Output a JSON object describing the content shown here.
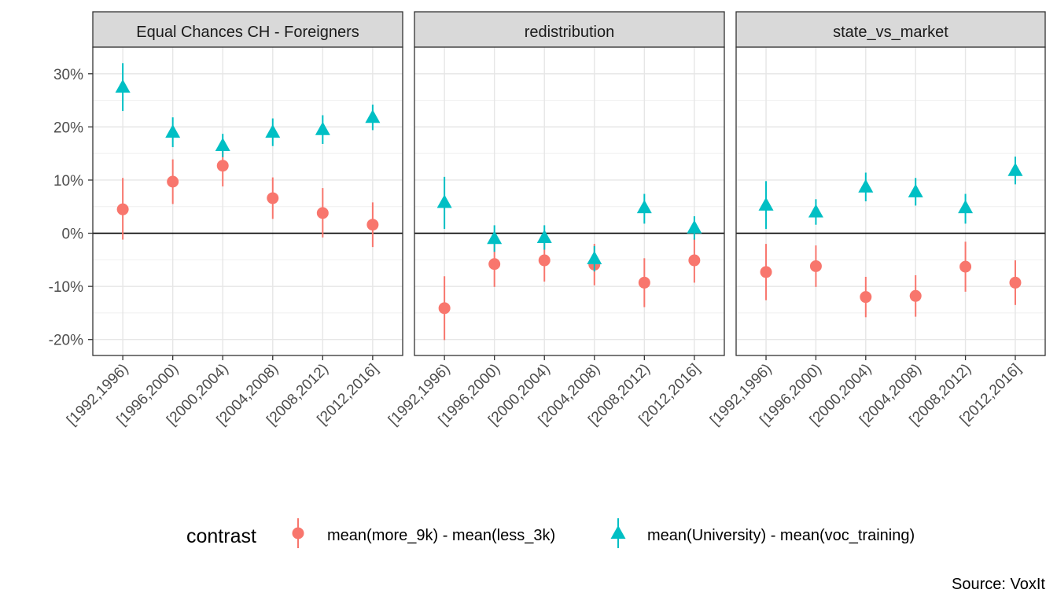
{
  "chart_data": {
    "type": "scatter",
    "subtype": "pointrange",
    "panels": [
      "Equal Chances CH - Foreigners",
      "redistribution",
      "state_vs_market"
    ],
    "categories": [
      "[1992,1996)",
      "[1996,2000)",
      "[2000,2004)",
      "[2004,2008)",
      "[2008,2012)",
      "[2012,2016]"
    ],
    "ylim": [
      -0.23,
      0.35
    ],
    "yticks": [
      -0.2,
      -0.1,
      0,
      0.1,
      0.2,
      0.3
    ],
    "ytick_labels": [
      "-20%",
      "-10%",
      "0%",
      "10%",
      "20%",
      "30%"
    ],
    "reference_line": 0,
    "grid": true,
    "legend": {
      "title": "contrast",
      "position": "bottom"
    },
    "caption": "Source: VoxIt",
    "series": [
      {
        "name": "mean(more_9k) - mean(less_3k)",
        "color": "#F8766D",
        "shape": "circle",
        "panels": [
          {
            "y": [
              0.045,
              0.097,
              0.127,
              0.066,
              0.038,
              0.016
            ],
            "ymin": [
              -0.012,
              0.055,
              0.088,
              0.027,
              -0.008,
              -0.026
            ],
            "ymax": [
              0.104,
              0.139,
              0.166,
              0.105,
              0.085,
              0.058
            ]
          },
          {
            "y": [
              -0.141,
              -0.058,
              -0.051,
              -0.059,
              -0.093,
              -0.051
            ],
            "ymin": [
              -0.201,
              -0.101,
              -0.091,
              -0.098,
              -0.139,
              -0.093
            ],
            "ymax": [
              -0.081,
              -0.015,
              -0.011,
              -0.02,
              -0.047,
              -0.009
            ]
          },
          {
            "y": [
              -0.073,
              -0.062,
              -0.12,
              -0.118,
              -0.063,
              -0.093
            ],
            "ymin": [
              -0.126,
              -0.101,
              -0.158,
              -0.157,
              -0.11,
              -0.135
            ],
            "ymax": [
              -0.02,
              -0.023,
              -0.082,
              -0.079,
              -0.016,
              -0.051
            ]
          }
        ]
      },
      {
        "name": "mean(University) - mean(voc_training)",
        "color": "#00BFC4",
        "shape": "triangle",
        "panels": [
          {
            "y": [
              0.275,
              0.19,
              0.165,
              0.19,
              0.195,
              0.218
            ],
            "ymin": [
              0.23,
              0.162,
              0.143,
              0.164,
              0.168,
              0.194
            ],
            "ymax": [
              0.32,
              0.218,
              0.187,
              0.216,
              0.222,
              0.242
            ]
          },
          {
            "y": [
              0.058,
              -0.01,
              -0.008,
              -0.048,
              0.048,
              0.01
            ],
            "ymin": [
              0.008,
              -0.035,
              -0.031,
              -0.072,
              0.018,
              -0.012
            ],
            "ymax": [
              0.106,
              0.015,
              0.015,
              -0.024,
              0.074,
              0.032
            ]
          },
          {
            "y": [
              0.053,
              0.04,
              0.087,
              0.078,
              0.048,
              0.118
            ],
            "ymin": [
              0.008,
              0.016,
              0.06,
              0.052,
              0.018,
              0.092
            ],
            "ymax": [
              0.098,
              0.064,
              0.114,
              0.104,
              0.074,
              0.144
            ]
          }
        ]
      }
    ]
  }
}
